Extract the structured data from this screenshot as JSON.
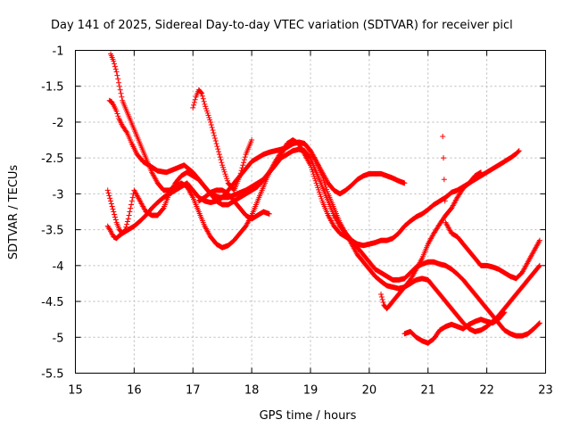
{
  "chart_data": {
    "type": "scatter",
    "title": "Day 141 of 2025, Sidereal Day-to-day VTEC variation (SDTVAR) for receiver picl",
    "xlabel": "GPS time / hours",
    "ylabel": "SDTVAR / TECUs",
    "xlim": [
      15,
      23
    ],
    "ylim": [
      -5.5,
      -1
    ],
    "x_ticks": [
      15,
      16,
      17,
      18,
      19,
      20,
      21,
      22,
      23
    ],
    "y_ticks": [
      -1,
      -1.5,
      -2,
      -2.5,
      -3,
      -3.5,
      -4,
      -4.5,
      -5,
      -5.5
    ],
    "x_tick_labels": [
      "15",
      "16",
      "17",
      "18",
      "19",
      "20",
      "21",
      "22",
      "23"
    ],
    "y_tick_labels": [
      "-1",
      "-1.5",
      "-2",
      "-2.5",
      "-3",
      "-3.5",
      "-4",
      "-4.5",
      "-5",
      "-5.5"
    ],
    "grid": true,
    "marker": "+",
    "color": "#ff0000",
    "series": [
      {
        "name": "track-1",
        "x": [
          15.58,
          15.62,
          15.66,
          15.7,
          15.74,
          15.8,
          15.88,
          15.96,
          16.05,
          16.15,
          16.25,
          16.4,
          16.55,
          16.7,
          16.85,
          17.0,
          17.15,
          17.3,
          17.45,
          17.6,
          17.75,
          17.9,
          18.0,
          18.1,
          18.2,
          18.3,
          18.4,
          18.5,
          18.6,
          18.7,
          18.8,
          18.9,
          19.0,
          19.1,
          19.2,
          19.3,
          19.4,
          19.5,
          19.6,
          19.7,
          19.8,
          19.9,
          20.0,
          20.1,
          20.2,
          20.3,
          20.4,
          20.5,
          20.6,
          20.7,
          20.8,
          20.9,
          21.0,
          21.1,
          21.2,
          21.3,
          21.4,
          21.5,
          21.6,
          21.7,
          21.8,
          21.9,
          22.0,
          22.1,
          22.2,
          22.3,
          22.4,
          22.5,
          22.55
        ],
        "y": [
          -1.7,
          -1.72,
          -1.78,
          -1.85,
          -1.95,
          -2.05,
          -2.15,
          -2.3,
          -2.45,
          -2.55,
          -2.6,
          -2.68,
          -2.7,
          -2.65,
          -2.6,
          -2.7,
          -2.85,
          -3.0,
          -3.05,
          -3.05,
          -3.0,
          -2.95,
          -2.9,
          -2.85,
          -2.8,
          -2.7,
          -2.6,
          -2.45,
          -2.3,
          -2.25,
          -2.3,
          -2.45,
          -2.6,
          -2.85,
          -3.1,
          -3.3,
          -3.45,
          -3.55,
          -3.6,
          -3.65,
          -3.7,
          -3.72,
          -3.7,
          -3.68,
          -3.65,
          -3.65,
          -3.62,
          -3.55,
          -3.45,
          -3.38,
          -3.32,
          -3.28,
          -3.22,
          -3.15,
          -3.1,
          -3.05,
          -2.98,
          -2.95,
          -2.9,
          -2.85,
          -2.8,
          -2.75,
          -2.7,
          -2.65,
          -2.6,
          -2.55,
          -2.5,
          -2.44,
          -2.4
        ]
      },
      {
        "name": "track-2",
        "x": [
          15.55,
          15.6,
          15.65,
          15.7,
          15.75,
          15.8,
          15.9,
          16.0,
          16.1,
          16.2,
          16.3,
          16.4,
          16.5,
          16.6,
          16.7,
          16.8,
          16.9,
          17.0,
          17.1,
          17.2,
          17.3,
          17.4,
          17.5,
          17.6,
          17.7,
          17.8,
          17.9,
          18.0,
          18.1,
          18.2,
          18.3,
          18.4,
          18.5,
          18.6,
          18.7,
          18.8,
          18.9,
          19.0,
          19.1,
          19.2,
          19.3,
          19.4,
          19.5,
          19.6,
          19.7,
          19.8,
          19.9,
          20.0,
          20.1,
          20.2,
          20.3,
          20.4,
          20.5,
          20.6
        ],
        "y": [
          -3.45,
          -3.52,
          -3.6,
          -3.62,
          -3.58,
          -3.55,
          -3.5,
          -3.45,
          -3.38,
          -3.3,
          -3.2,
          -3.12,
          -3.05,
          -3.0,
          -2.95,
          -2.9,
          -2.85,
          -2.95,
          -3.05,
          -3.1,
          -3.12,
          -3.1,
          -3.05,
          -2.95,
          -2.85,
          -2.75,
          -2.65,
          -2.55,
          -2.5,
          -2.45,
          -2.42,
          -2.4,
          -2.38,
          -2.35,
          -2.3,
          -2.28,
          -2.3,
          -2.4,
          -2.55,
          -2.7,
          -2.85,
          -2.95,
          -3.0,
          -2.95,
          -2.88,
          -2.8,
          -2.75,
          -2.72,
          -2.72,
          -2.72,
          -2.75,
          -2.78,
          -2.82,
          -2.85
        ]
      },
      {
        "name": "track-3",
        "x": [
          15.55,
          15.6,
          15.65,
          15.7,
          15.75,
          15.8,
          15.85,
          15.9,
          15.95,
          16.0,
          16.1,
          16.2,
          16.3,
          16.4,
          16.5,
          16.6,
          16.7,
          16.8,
          16.9,
          17.0,
          17.1,
          17.2,
          17.3,
          17.4,
          17.5,
          17.6,
          17.7,
          17.8,
          17.9,
          18.0,
          18.1,
          18.2,
          18.3,
          18.4,
          18.5,
          18.6,
          18.7,
          18.8,
          18.9,
          19.0,
          19.1,
          19.2,
          19.3,
          19.4,
          19.5,
          19.6,
          19.7,
          19.8,
          19.9,
          20.0,
          20.1,
          20.2,
          20.3,
          20.4,
          20.5,
          20.6,
          20.7,
          20.8,
          20.9,
          21.0,
          21.1,
          21.2,
          21.3,
          21.4,
          21.5,
          21.6,
          21.7,
          21.8,
          21.9,
          22.0,
          22.1,
          22.2,
          22.3,
          22.4,
          22.5,
          22.6,
          22.7,
          22.8,
          22.9
        ],
        "y": [
          -2.95,
          -3.1,
          -3.25,
          -3.4,
          -3.5,
          -3.55,
          -3.5,
          -3.35,
          -3.15,
          -2.95,
          -3.1,
          -3.25,
          -3.3,
          -3.3,
          -3.2,
          -3.0,
          -2.85,
          -2.75,
          -2.7,
          -2.75,
          -2.8,
          -2.9,
          -3.0,
          -3.1,
          -3.15,
          -3.15,
          -3.1,
          -3.05,
          -3.0,
          -2.95,
          -2.9,
          -2.8,
          -2.7,
          -2.6,
          -2.5,
          -2.45,
          -2.4,
          -2.38,
          -2.4,
          -2.5,
          -2.7,
          -2.9,
          -3.1,
          -3.3,
          -3.45,
          -3.55,
          -3.65,
          -3.75,
          -3.85,
          -3.95,
          -4.05,
          -4.1,
          -4.15,
          -4.2,
          -4.2,
          -4.18,
          -4.1,
          -4.02,
          -3.98,
          -3.95,
          -3.95,
          -3.98,
          -4.0,
          -4.05,
          -4.12,
          -4.2,
          -4.3,
          -4.4,
          -4.5,
          -4.6,
          -4.7,
          -4.8,
          -4.9,
          -4.95,
          -4.98,
          -4.98,
          -4.95,
          -4.88,
          -4.8
        ]
      },
      {
        "name": "track-4",
        "x": [
          15.6,
          15.65,
          15.7,
          15.75,
          15.8,
          15.9,
          16.0,
          16.1,
          16.2,
          16.3,
          16.4,
          16.5,
          16.6,
          16.7,
          16.8,
          16.9,
          17.0,
          17.1,
          17.2,
          17.3,
          17.4,
          17.5,
          17.6,
          17.7,
          17.8,
          17.9,
          18.0,
          18.1,
          18.2,
          18.3,
          18.4,
          18.5,
          18.6,
          18.7,
          18.8,
          18.9,
          19.0,
          19.1,
          19.2,
          19.3,
          19.4,
          19.5,
          19.6,
          19.7,
          19.8,
          19.9,
          20.0,
          20.1,
          20.2,
          20.3,
          20.4,
          20.5,
          20.6,
          20.7,
          20.8,
          20.9,
          21.0,
          21.1,
          21.2,
          21.3,
          21.4,
          21.5,
          21.6,
          21.7,
          21.8,
          21.9,
          22.0,
          22.1,
          22.2,
          22.3,
          22.4,
          22.5,
          22.6,
          22.7,
          22.8,
          22.9
        ],
        "y": [
          -1.05,
          -1.15,
          -1.3,
          -1.5,
          -1.7,
          -1.9,
          -2.1,
          -2.3,
          -2.5,
          -2.7,
          -2.85,
          -2.95,
          -2.95,
          -2.9,
          -2.85,
          -2.9,
          -3.05,
          -3.25,
          -3.45,
          -3.6,
          -3.7,
          -3.75,
          -3.72,
          -3.65,
          -3.55,
          -3.45,
          -3.3,
          -3.1,
          -2.9,
          -2.7,
          -2.55,
          -2.42,
          -2.35,
          -2.3,
          -2.28,
          -2.3,
          -2.4,
          -2.55,
          -2.75,
          -3.0,
          -3.2,
          -3.4,
          -3.55,
          -3.7,
          -3.85,
          -3.95,
          -4.05,
          -4.15,
          -4.22,
          -4.28,
          -4.3,
          -4.32,
          -4.3,
          -4.25,
          -4.2,
          -4.18,
          -4.2,
          -4.3,
          -4.4,
          -4.5,
          -4.6,
          -4.7,
          -4.8,
          -4.88,
          -4.92,
          -4.9,
          -4.85,
          -4.78,
          -4.7,
          -4.6,
          -4.5,
          -4.4,
          -4.3,
          -4.2,
          -4.1,
          -4.0
        ]
      },
      {
        "name": "track-5",
        "x": [
          17.0,
          17.05,
          17.1,
          17.15,
          17.2,
          17.3,
          17.4,
          17.5,
          17.6,
          17.7,
          17.8,
          17.9,
          18.0
        ],
        "y": [
          -1.8,
          -1.65,
          -1.55,
          -1.6,
          -1.75,
          -2.0,
          -2.3,
          -2.6,
          -2.85,
          -2.95,
          -2.75,
          -2.45,
          -2.25
        ]
      },
      {
        "name": "track-6",
        "x": [
          17.1,
          17.2,
          17.3,
          17.4,
          17.5,
          17.6,
          17.7,
          17.8,
          17.9,
          18.0,
          18.1,
          18.2,
          18.3
        ],
        "y": [
          -3.1,
          -3.05,
          -2.98,
          -2.95,
          -2.95,
          -3.0,
          -3.1,
          -3.2,
          -3.3,
          -3.35,
          -3.3,
          -3.25,
          -3.28
        ]
      },
      {
        "name": "track-7",
        "x": [
          21.25,
          21.3,
          21.4,
          21.5,
          21.6,
          21.7,
          21.8,
          21.9,
          22.0,
          22.1,
          22.2,
          22.3,
          22.4,
          22.5,
          22.6,
          22.7,
          22.8,
          22.9
        ],
        "y": [
          -2.2,
          -3.4,
          -3.55,
          -3.6,
          -3.7,
          -3.8,
          -3.9,
          -4.0,
          -4.0,
          -4.02,
          -4.05,
          -4.1,
          -4.15,
          -4.18,
          -4.1,
          -3.95,
          -3.8,
          -3.65
        ]
      },
      {
        "name": "track-8",
        "x": [
          20.6,
          20.7,
          20.8,
          20.9,
          21.0,
          21.1,
          21.2,
          21.3,
          21.4,
          21.5,
          21.6,
          21.7,
          21.8,
          21.9,
          22.0,
          22.1,
          22.2,
          22.3
        ],
        "y": [
          -4.95,
          -4.92,
          -5.0,
          -5.05,
          -5.08,
          -5.02,
          -4.9,
          -4.85,
          -4.82,
          -4.85,
          -4.88,
          -4.82,
          -4.78,
          -4.75,
          -4.78,
          -4.8,
          -4.75,
          -4.65
        ]
      },
      {
        "name": "track-9",
        "x": [
          20.2,
          20.25,
          20.3,
          20.35,
          20.4,
          20.5,
          20.6,
          20.7,
          20.8,
          20.9,
          21.0,
          21.1,
          21.2,
          21.3,
          21.4,
          21.5,
          21.6,
          21.7,
          21.8,
          21.9
        ],
        "y": [
          -4.4,
          -4.55,
          -4.6,
          -4.55,
          -4.5,
          -4.4,
          -4.3,
          -4.2,
          -4.05,
          -3.9,
          -3.7,
          -3.55,
          -3.42,
          -3.3,
          -3.2,
          -3.05,
          -2.92,
          -2.85,
          -2.75,
          -2.7
        ]
      }
    ]
  }
}
